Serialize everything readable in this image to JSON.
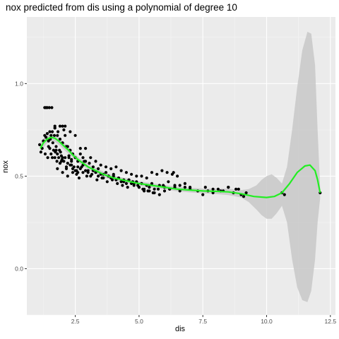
{
  "chart_data": {
    "type": "scatter",
    "title": "nox predicted from dis using a polynomial of degree 10",
    "xlabel": "dis",
    "ylabel": "nox",
    "xlim": [
      0.6,
      12.7
    ],
    "ylim": [
      -0.25,
      1.36
    ],
    "x_ticks": [
      2.5,
      5.0,
      7.5,
      10.0,
      12.5
    ],
    "x_tick_labels": [
      "2.5",
      "5.0",
      "7.5",
      "10.0",
      "12.5"
    ],
    "y_ticks": [
      0.0,
      0.5,
      1.0
    ],
    "y_tick_labels": [
      "0.0",
      "0.5",
      "1.0"
    ],
    "grid": true,
    "colors": {
      "panel": "#ebebeb",
      "grid_major": "#ffffff",
      "points": "#000000",
      "fit_line": "#22ee22",
      "ribbon": "#c8c8c8"
    },
    "series": [
      {
        "kind": "points",
        "x": [
          1.1,
          1.15,
          1.2,
          1.25,
          1.3,
          1.32,
          1.35,
          1.4,
          1.42,
          1.45,
          1.48,
          1.5,
          1.52,
          1.55,
          1.58,
          1.6,
          1.62,
          1.65,
          1.68,
          1.7,
          1.72,
          1.75,
          1.78,
          1.8,
          1.82,
          1.85,
          1.88,
          1.9,
          1.92,
          1.95,
          1.98,
          2.0,
          2.05,
          2.1,
          2.15,
          2.2,
          2.25,
          2.3,
          2.35,
          2.4,
          2.45,
          2.5,
          2.6,
          2.7,
          2.8,
          2.9,
          3.0,
          3.1,
          3.2,
          3.3,
          3.4,
          3.5,
          3.6,
          3.7,
          3.8,
          3.9,
          4.0,
          4.1,
          4.2,
          4.3,
          4.4,
          4.5,
          4.6,
          4.7,
          4.8,
          4.9,
          5.0,
          5.1,
          5.2,
          5.3,
          5.4,
          5.5,
          5.6,
          5.8,
          6.0,
          6.2,
          6.4,
          6.6,
          6.8,
          7.0,
          7.3,
          7.6,
          7.9,
          8.2,
          8.5,
          8.8,
          9.0,
          9.2,
          10.6,
          10.7,
          12.1,
          1.35,
          1.4,
          1.45,
          1.5,
          1.55,
          1.6,
          1.7,
          1.8,
          1.9,
          2.0,
          2.1,
          2.2,
          2.3,
          2.4,
          2.5,
          2.6,
          2.7,
          2.8,
          2.9,
          1.3,
          1.5,
          1.7,
          1.9,
          2.1,
          2.3,
          2.5,
          2.7,
          2.9,
          3.1,
          3.3,
          3.5,
          3.7,
          3.9,
          4.1,
          4.3,
          4.5,
          4.7,
          4.9,
          5.1,
          5.3,
          5.5,
          5.7,
          5.9,
          6.1,
          6.3,
          6.5,
          1.8,
          2.0,
          2.2,
          2.4,
          2.6,
          2.8,
          3.0,
          3.2,
          3.4,
          3.6,
          3.8,
          4.0,
          4.2,
          4.4,
          4.6,
          4.8,
          5.0,
          5.2,
          5.4,
          5.6,
          5.8,
          6.0,
          6.2,
          6.4,
          6.6,
          6.8,
          7.0,
          1.95,
          2.15,
          2.35,
          2.55,
          2.75,
          2.95,
          3.15,
          3.35,
          3.55,
          3.75,
          3.95,
          4.15,
          4.35,
          4.55,
          4.75,
          4.95,
          5.15,
          5.35,
          5.55,
          5.75,
          5.95,
          6.15,
          6.35,
          7.5,
          7.7,
          7.9,
          8.1,
          8.3,
          8.5,
          8.7,
          8.9,
          9.1,
          1.7,
          1.75,
          2.0,
          2.05,
          2.15,
          2.25,
          2.35,
          2.55,
          2.65,
          2.85,
          3.05
        ],
        "y": [
          0.67,
          0.63,
          0.65,
          0.69,
          0.87,
          0.62,
          0.87,
          0.87,
          0.6,
          0.66,
          0.87,
          0.65,
          0.7,
          0.62,
          0.87,
          0.6,
          0.68,
          0.64,
          0.72,
          0.6,
          0.63,
          0.66,
          0.58,
          0.62,
          0.74,
          0.6,
          0.64,
          0.57,
          0.63,
          0.61,
          0.59,
          0.6,
          0.58,
          0.6,
          0.55,
          0.57,
          0.6,
          0.56,
          0.58,
          0.54,
          0.55,
          0.53,
          0.55,
          0.54,
          0.52,
          0.53,
          0.52,
          0.5,
          0.53,
          0.52,
          0.5,
          0.51,
          0.49,
          0.52,
          0.5,
          0.49,
          0.5,
          0.48,
          0.49,
          0.47,
          0.48,
          0.46,
          0.48,
          0.46,
          0.45,
          0.47,
          0.44,
          0.46,
          0.43,
          0.45,
          0.44,
          0.46,
          0.43,
          0.45,
          0.44,
          0.43,
          0.45,
          0.42,
          0.44,
          0.43,
          0.42,
          0.44,
          0.43,
          0.42,
          0.44,
          0.43,
          0.4,
          0.41,
          0.41,
          0.4,
          0.41,
          0.71,
          0.73,
          0.69,
          0.7,
          0.72,
          0.74,
          0.76,
          0.72,
          0.7,
          0.68,
          0.72,
          0.66,
          0.64,
          0.62,
          0.6,
          0.58,
          0.62,
          0.6,
          0.58,
          0.72,
          0.74,
          0.77,
          0.77,
          0.77,
          0.74,
          0.72,
          0.65,
          0.65,
          0.6,
          0.58,
          0.56,
          0.55,
          0.54,
          0.55,
          0.53,
          0.52,
          0.51,
          0.5,
          0.5,
          0.49,
          0.52,
          0.51,
          0.53,
          0.52,
          0.51,
          0.5,
          0.54,
          0.52,
          0.5,
          0.52,
          0.52,
          0.56,
          0.53,
          0.55,
          0.54,
          0.51,
          0.5,
          0.51,
          0.49,
          0.47,
          0.48,
          0.46,
          0.44,
          0.42,
          0.42,
          0.41,
          0.4,
          0.42,
          0.43,
          0.44,
          0.45,
          0.46,
          0.44,
          0.58,
          0.54,
          0.56,
          0.53,
          0.55,
          0.5,
          0.51,
          0.48,
          0.49,
          0.47,
          0.48,
          0.46,
          0.45,
          0.44,
          0.47,
          0.45,
          0.43,
          0.42,
          0.41,
          0.43,
          0.45,
          0.47,
          0.52,
          0.4,
          0.42,
          0.41,
          0.43,
          0.42,
          0.44,
          0.41,
          0.43,
          0.39,
          0.76,
          0.64,
          0.77,
          0.75,
          0.66,
          0.61,
          0.59,
          0.51,
          0.49,
          0.58,
          0.57
        ]
      },
      {
        "kind": "fit",
        "x": [
          1.13,
          1.25,
          1.4,
          1.55,
          1.7,
          1.85,
          2.0,
          2.2,
          2.4,
          2.6,
          2.8,
          3.0,
          3.3,
          3.6,
          4.0,
          4.5,
          5.0,
          5.5,
          6.0,
          6.5,
          7.0,
          7.5,
          8.0,
          8.5,
          9.0,
          9.5,
          10.0,
          10.3,
          10.6,
          10.9,
          11.2,
          11.5,
          11.7,
          11.9,
          12.0,
          12.1
        ],
        "y": [
          0.65,
          0.68,
          0.7,
          0.71,
          0.705,
          0.69,
          0.67,
          0.645,
          0.615,
          0.59,
          0.57,
          0.55,
          0.53,
          0.51,
          0.49,
          0.475,
          0.46,
          0.45,
          0.44,
          0.43,
          0.425,
          0.42,
          0.418,
          0.415,
          0.405,
          0.39,
          0.385,
          0.39,
          0.41,
          0.46,
          0.52,
          0.555,
          0.56,
          0.53,
          0.48,
          0.41
        ]
      },
      {
        "kind": "ribbon",
        "x": [
          1.13,
          1.25,
          1.4,
          1.55,
          1.7,
          1.85,
          2.0,
          2.2,
          2.4,
          2.6,
          2.8,
          3.0,
          3.3,
          3.6,
          4.0,
          4.5,
          5.0,
          5.5,
          6.0,
          6.5,
          7.0,
          7.5,
          8.0,
          8.5,
          9.0,
          9.3,
          9.6,
          9.8,
          10.0,
          10.2,
          10.4,
          10.6,
          10.8,
          11.0,
          11.2,
          11.4,
          11.6,
          11.75,
          11.9,
          12.0,
          12.1
        ],
        "ymin": [
          0.62,
          0.655,
          0.68,
          0.69,
          0.685,
          0.67,
          0.65,
          0.625,
          0.6,
          0.575,
          0.555,
          0.535,
          0.515,
          0.495,
          0.477,
          0.462,
          0.448,
          0.438,
          0.428,
          0.418,
          0.412,
          0.407,
          0.403,
          0.398,
          0.385,
          0.36,
          0.32,
          0.29,
          0.27,
          0.27,
          0.3,
          0.34,
          0.25,
          0.05,
          -0.1,
          -0.17,
          -0.18,
          -0.12,
          0.05,
          0.25,
          0.38
        ],
        "ymax": [
          0.68,
          0.705,
          0.72,
          0.73,
          0.725,
          0.71,
          0.69,
          0.665,
          0.63,
          0.605,
          0.585,
          0.565,
          0.545,
          0.525,
          0.503,
          0.488,
          0.472,
          0.462,
          0.452,
          0.442,
          0.438,
          0.433,
          0.433,
          0.432,
          0.425,
          0.43,
          0.45,
          0.48,
          0.5,
          0.51,
          0.49,
          0.46,
          0.55,
          0.75,
          0.98,
          1.18,
          1.28,
          1.27,
          1.1,
          0.75,
          0.44
        ]
      }
    ]
  }
}
